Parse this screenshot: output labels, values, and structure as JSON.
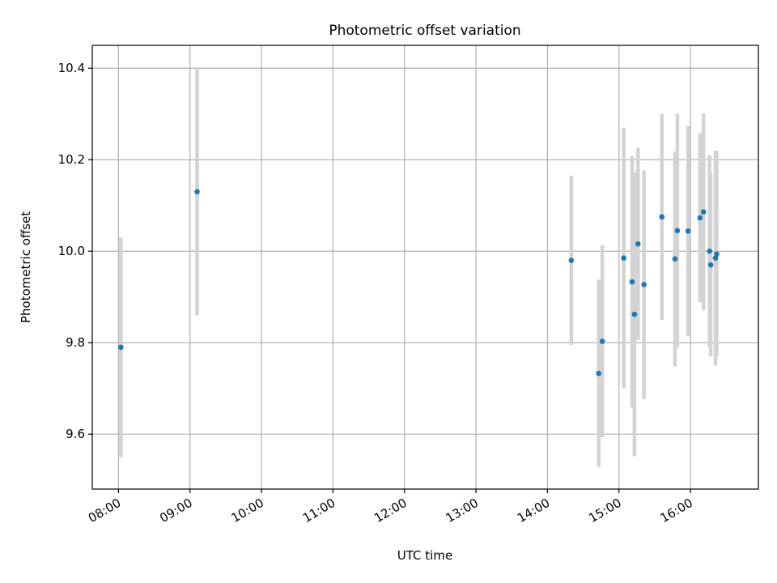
{
  "chart_data": {
    "type": "scatter",
    "title": "Photometric offset variation",
    "xlabel": "UTC time",
    "ylabel": "Photometric offset",
    "x_axis_type": "time",
    "xlim": [
      "07:38",
      "16:57"
    ],
    "ylim": [
      9.48,
      10.45
    ],
    "x_ticks": [
      "08:00",
      "09:00",
      "10:00",
      "11:00",
      "12:00",
      "13:00",
      "14:00",
      "15:00",
      "16:00"
    ],
    "y_ticks": [
      "9.6",
      "9.8",
      "10.0",
      "10.2",
      "10.4"
    ],
    "grid": true,
    "colors": {
      "point": "#1f77b4",
      "errorbar": "#d3d3d3",
      "grid": "#b0b0b0"
    },
    "points": [
      {
        "x": "08:02",
        "y": 9.79,
        "yerr": 0.24
      },
      {
        "x": "09:06",
        "y": 10.13,
        "yerr": 0.27
      },
      {
        "x": "14:20",
        "y": 9.98,
        "yerr": 0.185
      },
      {
        "x": "14:43",
        "y": 9.733,
        "yerr": 0.205
      },
      {
        "x": "14:46",
        "y": 9.803,
        "yerr": 0.21
      },
      {
        "x": "15:04",
        "y": 9.985,
        "yerr": 0.285
      },
      {
        "x": "15:11",
        "y": 9.933,
        "yerr": 0.275
      },
      {
        "x": "15:13",
        "y": 9.862,
        "yerr": 0.31
      },
      {
        "x": "15:16",
        "y": 10.016,
        "yerr": 0.21
      },
      {
        "x": "15:21",
        "y": 9.927,
        "yerr": 0.25
      },
      {
        "x": "15:36",
        "y": 10.075,
        "yerr": 0.225
      },
      {
        "x": "15:47",
        "y": 9.983,
        "yerr": 0.235
      },
      {
        "x": "15:49",
        "y": 10.045,
        "yerr": 0.255
      },
      {
        "x": "15:58",
        "y": 10.044,
        "yerr": 0.23
      },
      {
        "x": "16:08",
        "y": 10.073,
        "yerr": 0.185
      },
      {
        "x": "16:11",
        "y": 10.086,
        "yerr": 0.215
      },
      {
        "x": "16:16",
        "y": 10.0,
        "yerr": 0.21
      },
      {
        "x": "16:17",
        "y": 9.97,
        "yerr": 0.2
      },
      {
        "x": "16:21",
        "y": 9.985,
        "yerr": 0.235
      },
      {
        "x": "16:22",
        "y": 9.994,
        "yerr": 0.225
      }
    ]
  }
}
